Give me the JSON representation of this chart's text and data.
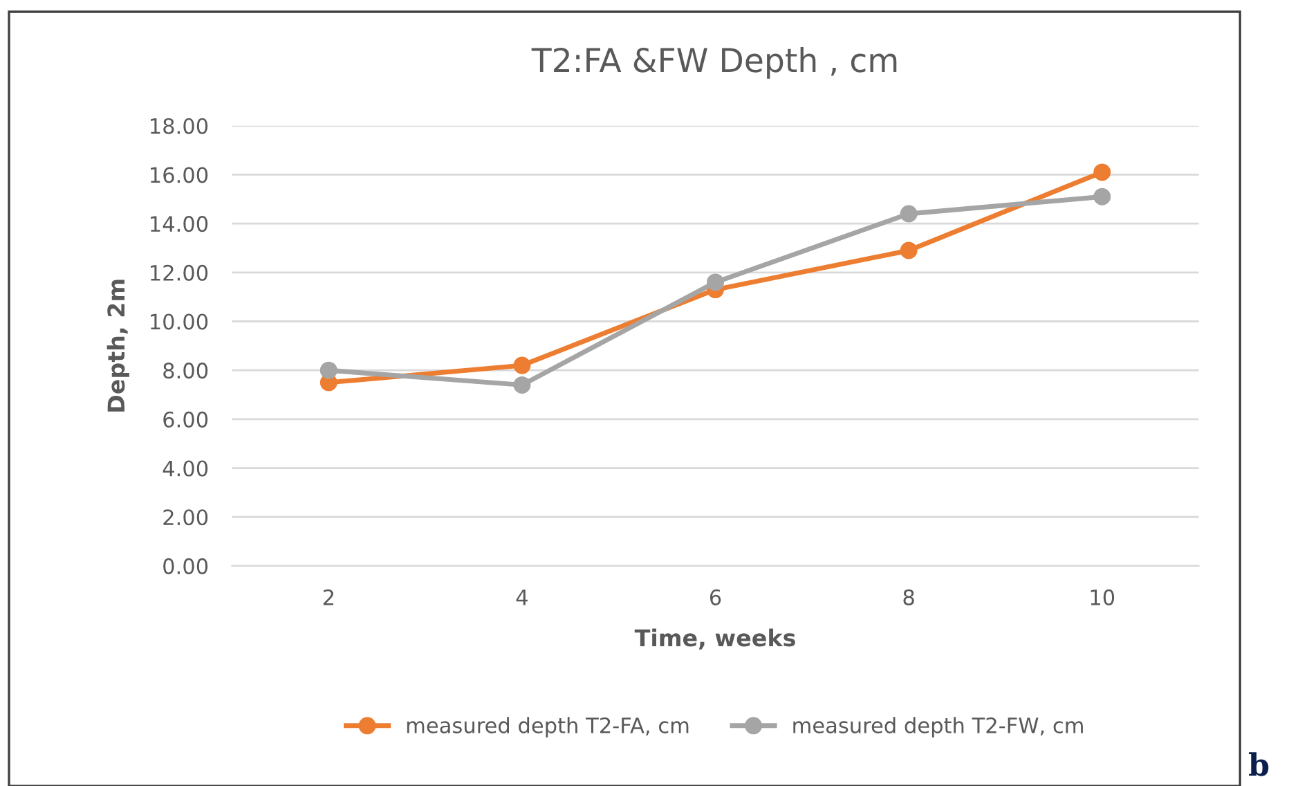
{
  "chart_data": {
    "type": "line",
    "title": "T2:FA &FW Depth , cm",
    "xlabel": "Time, weeks",
    "ylabel": "Depth, 2m",
    "categories": [
      "2",
      "4",
      "6",
      "8",
      "10"
    ],
    "series": [
      {
        "name": "measured depth T2-FA, cm",
        "color": "#ed7d31",
        "values": [
          7.5,
          8.2,
          11.3,
          12.9,
          16.1
        ]
      },
      {
        "name": "measured depth T2-FW, cm",
        "color": "#a5a5a5",
        "values": [
          8.0,
          7.4,
          11.6,
          14.4,
          15.1
        ]
      }
    ],
    "ylim": [
      0,
      18
    ],
    "yticks": [
      {
        "value": 0,
        "label": "0.00"
      },
      {
        "value": 2,
        "label": "2.00"
      },
      {
        "value": 4,
        "label": "4.00"
      },
      {
        "value": 6,
        "label": "6.00"
      },
      {
        "value": 8,
        "label": "8.00"
      },
      {
        "value": 10,
        "label": "10.00"
      },
      {
        "value": 12,
        "label": "12.00"
      },
      {
        "value": 14,
        "label": "14.00"
      },
      {
        "value": 16,
        "label": "16.00"
      },
      {
        "value": 18,
        "label": "18.00"
      }
    ],
    "grid": "y",
    "legend": "bottom",
    "marker": "circle",
    "line_style": "solid",
    "annotations": [
      "b"
    ]
  }
}
